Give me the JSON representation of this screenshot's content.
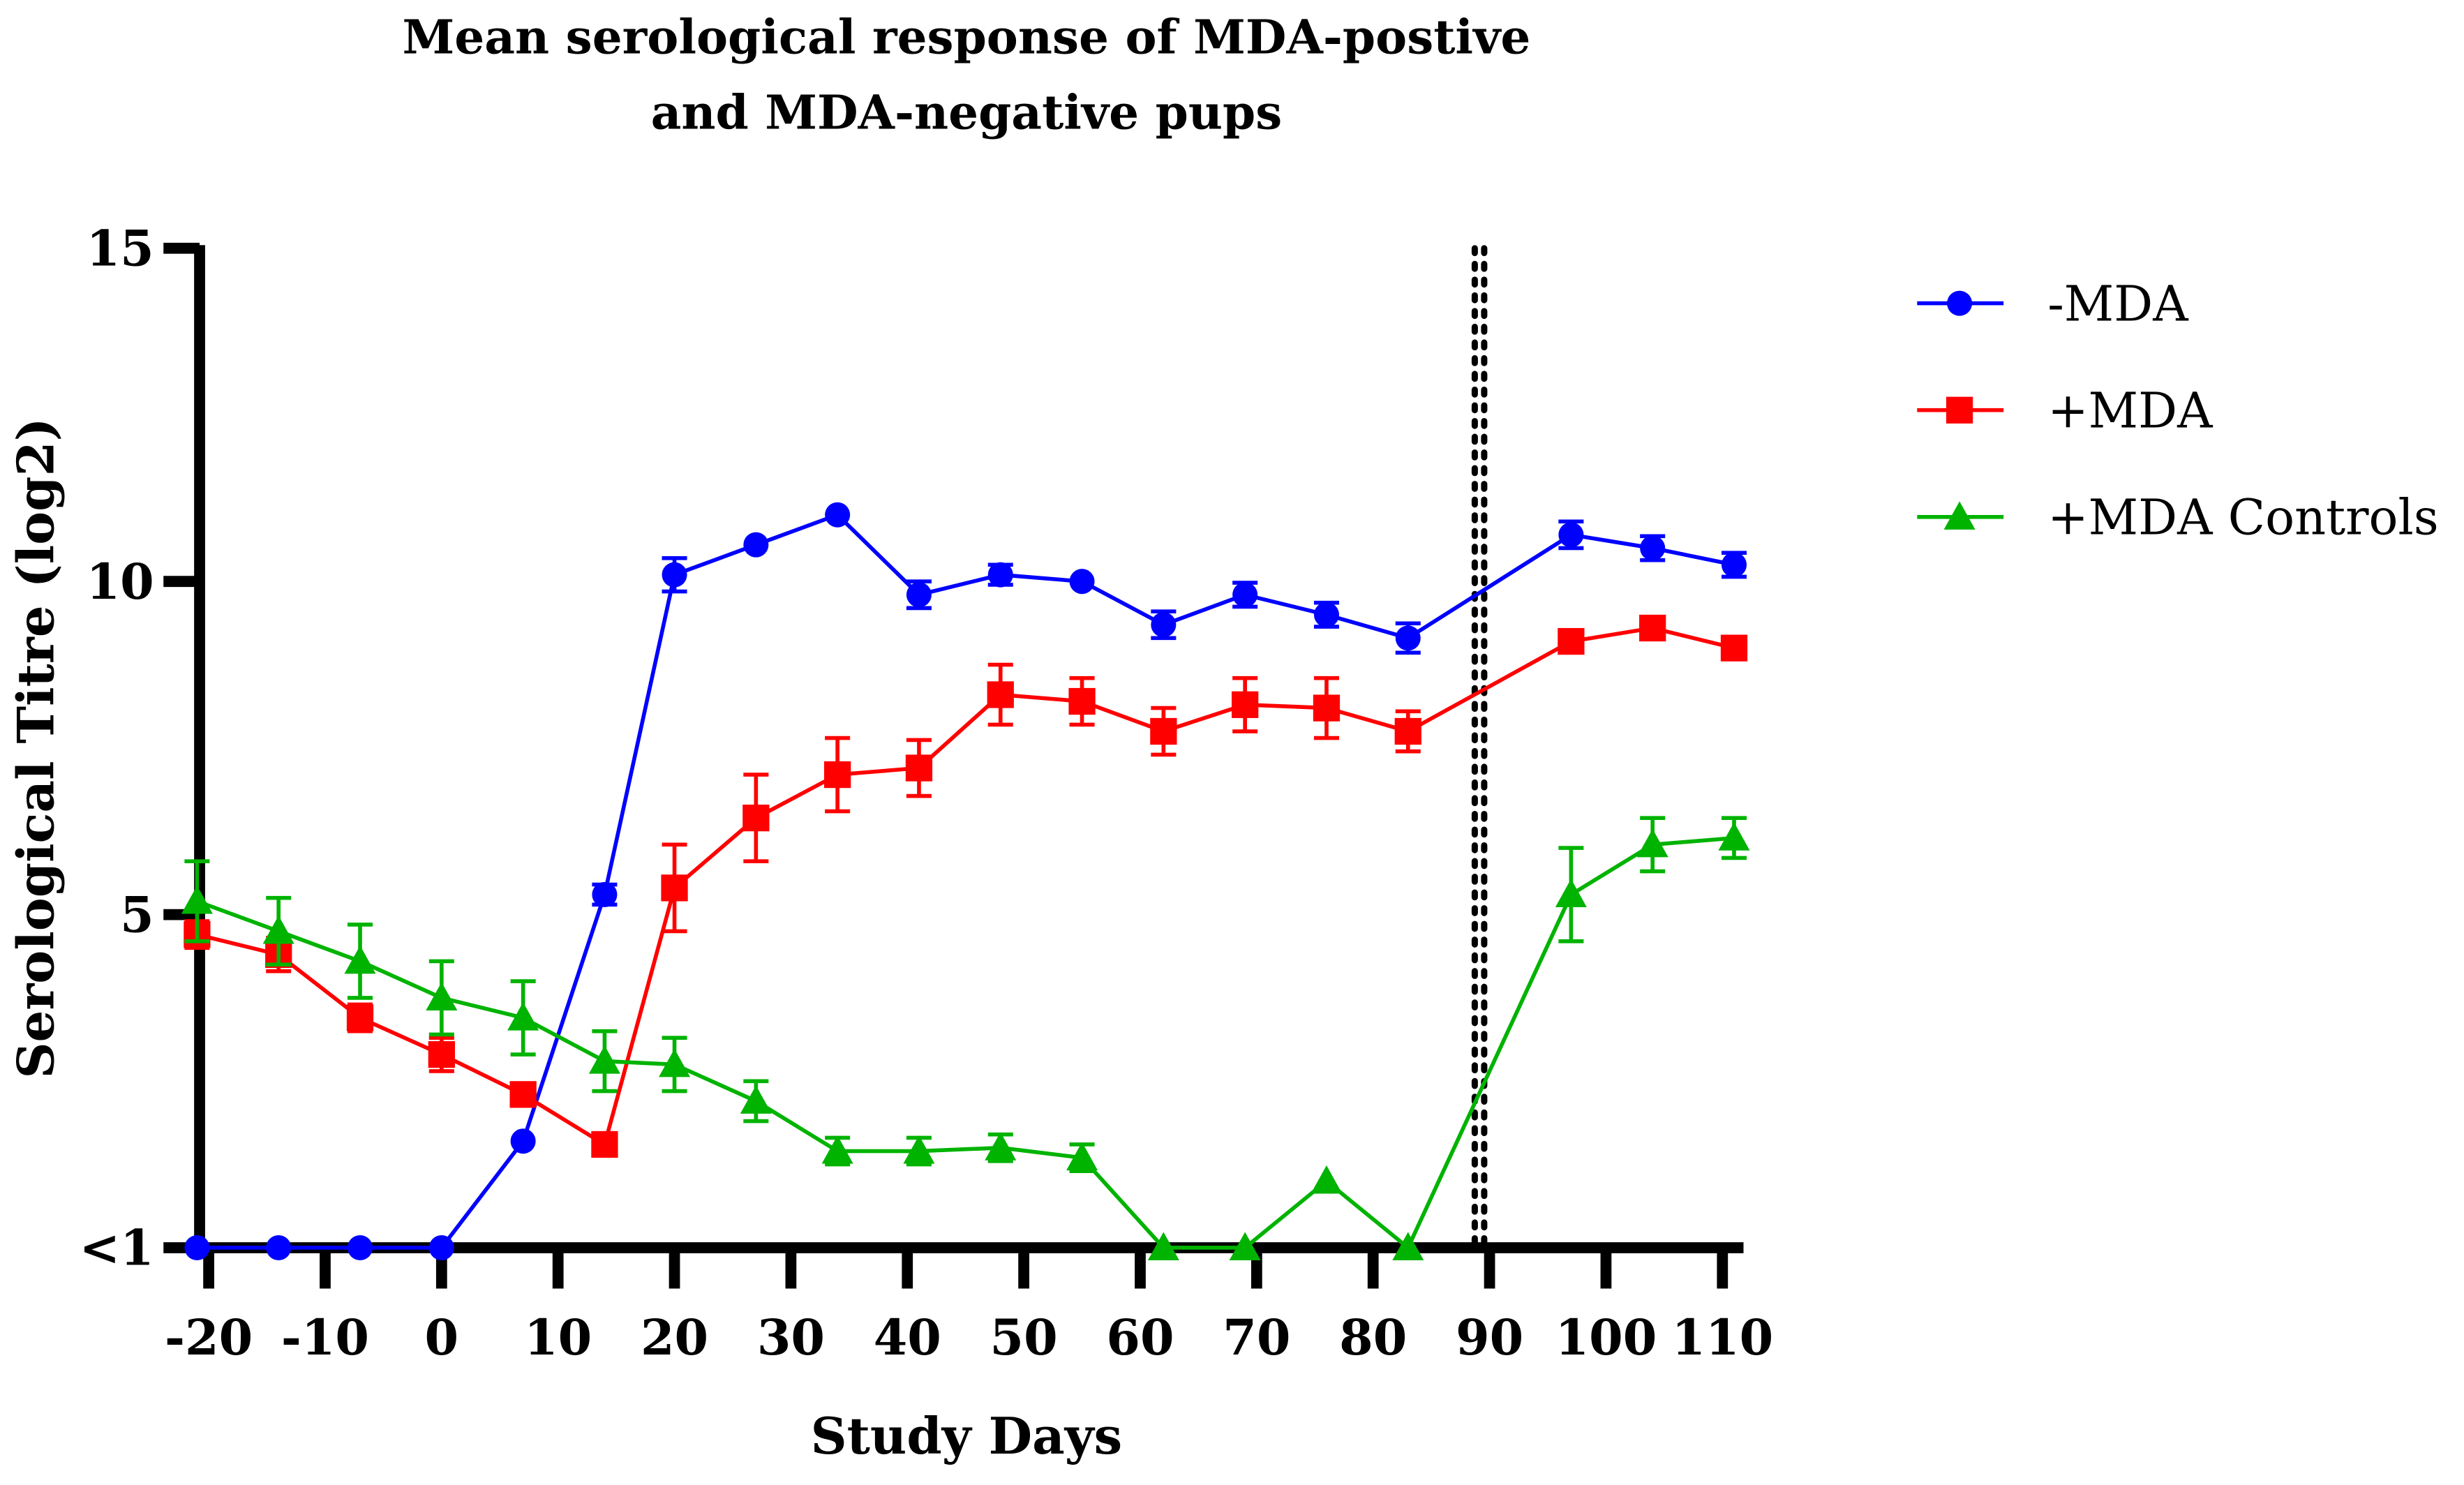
{
  "chart_data": {
    "type": "line",
    "title": [
      "Mean serological response of MDA-postive",
      "and MDA-negative pups"
    ],
    "xlabel": "Study Days",
    "ylabel": "Serological Titre (log2)",
    "xlim": [
      -21,
      111
    ],
    "ylim": [
      0,
      15
    ],
    "xticks": [
      -20,
      -10,
      0,
      10,
      20,
      30,
      40,
      50,
      60,
      70,
      80,
      90,
      100,
      110
    ],
    "yticks": [
      {
        "value": 0,
        "label": "<1"
      },
      {
        "value": 5,
        "label": "5"
      },
      {
        "value": 10,
        "label": "10"
      },
      {
        "value": 15,
        "label": "15"
      }
    ],
    "vline": {
      "x": 89,
      "style": "dotted",
      "color": "#000000"
    },
    "legend_position": "right",
    "x": [
      -21,
      -14,
      -7,
      0,
      7,
      14,
      20,
      27,
      34,
      41,
      48,
      55,
      62,
      69,
      76,
      83,
      97,
      104,
      111
    ],
    "series": [
      {
        "name": "-MDA",
        "color": "#0000FF",
        "marker": "circle",
        "values": [
          0,
          0,
          0,
          0,
          1.6,
          5.3,
          10.1,
          10.55,
          11.0,
          9.8,
          10.1,
          10.0,
          9.35,
          9.8,
          9.5,
          9.15,
          10.7,
          10.5,
          10.25
        ],
        "errors": [
          0,
          0,
          0,
          0,
          0,
          0.15,
          0.25,
          0,
          0,
          0.2,
          0.15,
          0,
          0.2,
          0.18,
          0.18,
          0.22,
          0.2,
          0.18,
          0.18
        ]
      },
      {
        "name": "+MDA",
        "color": "#FF0000",
        "marker": "square",
        "values": [
          4.7,
          4.4,
          3.45,
          2.9,
          2.3,
          1.55,
          5.4,
          6.45,
          7.1,
          7.2,
          8.3,
          8.2,
          7.75,
          8.15,
          8.1,
          7.75,
          9.1,
          9.3,
          9.0
        ],
        "errors": [
          0.2,
          0.25,
          0.2,
          0.25,
          0.15,
          0.15,
          0.65,
          0.65,
          0.55,
          0.42,
          0.45,
          0.35,
          0.35,
          0.4,
          0.45,
          0.3,
          0,
          0,
          0
        ]
      },
      {
        "name": "+MDA Controls",
        "color": "#00B300",
        "marker": "triangle",
        "values": [
          5.2,
          4.75,
          4.3,
          3.75,
          3.45,
          2.8,
          2.75,
          2.2,
          1.45,
          1.45,
          1.5,
          1.35,
          0,
          0,
          1.0,
          0,
          5.3,
          6.05,
          6.15
        ],
        "errors": [
          0.6,
          0.5,
          0.55,
          0.55,
          0.55,
          0.45,
          0.4,
          0.3,
          0.2,
          0.2,
          0.2,
          0.2,
          0,
          0,
          0,
          0,
          0.7,
          0.4,
          0.3
        ]
      }
    ]
  }
}
